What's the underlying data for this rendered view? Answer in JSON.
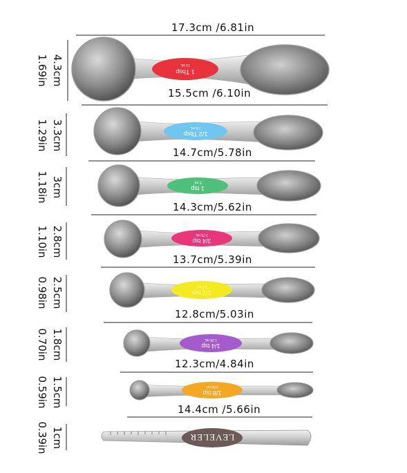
{
  "spoons": [
    {
      "top_label": "17.3cm /6.81in",
      "bottom_label": "15.5cm /6.10in",
      "side_cm": "4.3cm",
      "side_in": "1.69in",
      "badge_text": "1 Tbsp",
      "badge_sub": "15 mL",
      "badge_color": "#e8323c"
    },
    {
      "bottom_label": "14.7cm/5.78in",
      "side_cm": "3.3cm",
      "side_in": "1.29in",
      "badge_text": "1/2 Tbsp",
      "badge_sub": "7.5 mL",
      "badge_color": "#6fc6f0"
    },
    {
      "bottom_label": "14.3cm/5.62in",
      "side_cm": "3cm",
      "side_in": "1.18in",
      "badge_text": "1 tsp",
      "badge_sub": "5 mL",
      "badge_color": "#4fc07a"
    },
    {
      "bottom_label": "13.7cm/5.39in",
      "side_cm": "2.8cm",
      "side_in": "1.10in",
      "badge_text": "3/4 tsp",
      "badge_sub": "3.75 mL",
      "badge_color": "#e9357a"
    },
    {
      "bottom_label": "12.8cm/5.03in",
      "side_cm": "2.5cm",
      "side_in": "0.98in",
      "badge_text": "1/2 tsp",
      "badge_sub": "2.5 mL",
      "badge_color": "#f3ea22"
    },
    {
      "bottom_label": "12.3cm/4.84in",
      "side_cm": "1.8cm",
      "side_in": "0.70in",
      "badge_text": "1/4 tsp",
      "badge_sub": "1.25 mL",
      "badge_color": "#a55bcc"
    },
    {
      "bottom_label": "14.4cm /5.66in",
      "side_cm": "1.5cm",
      "side_in": "0.59in",
      "badge_text": "1/8 tsp",
      "badge_sub": "0.63 mL",
      "badge_color": "#f5a623"
    }
  ],
  "leveler": {
    "text": "LEVELER",
    "side_cm": "1cm",
    "side_in": "0.39in",
    "badge_color": "#6b5a55"
  }
}
